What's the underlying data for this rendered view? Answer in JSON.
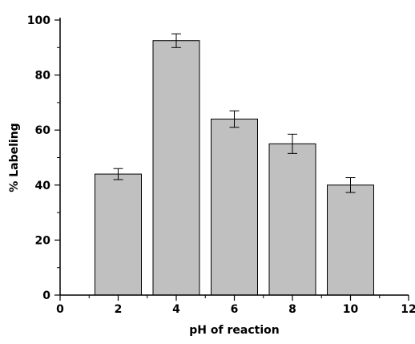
{
  "chart_data": {
    "type": "bar",
    "title": "",
    "xlabel": "pH of reaction",
    "ylabel": "% Labeling",
    "x": [
      2,
      4,
      6,
      8,
      10
    ],
    "values": [
      44,
      92.5,
      64,
      55,
      40
    ],
    "errors": [
      2,
      2.5,
      3,
      3.5,
      2.7
    ],
    "bar_width": 1.6,
    "xlim": [
      0,
      12
    ],
    "ylim": [
      0,
      100
    ],
    "xticks": [
      0,
      2,
      4,
      6,
      8,
      10,
      12
    ],
    "yticks": [
      0,
      20,
      40,
      60,
      80,
      100
    ],
    "grid": false,
    "legend": "none",
    "bar_color": "#c0c0c0",
    "edge_color": "#000000"
  }
}
